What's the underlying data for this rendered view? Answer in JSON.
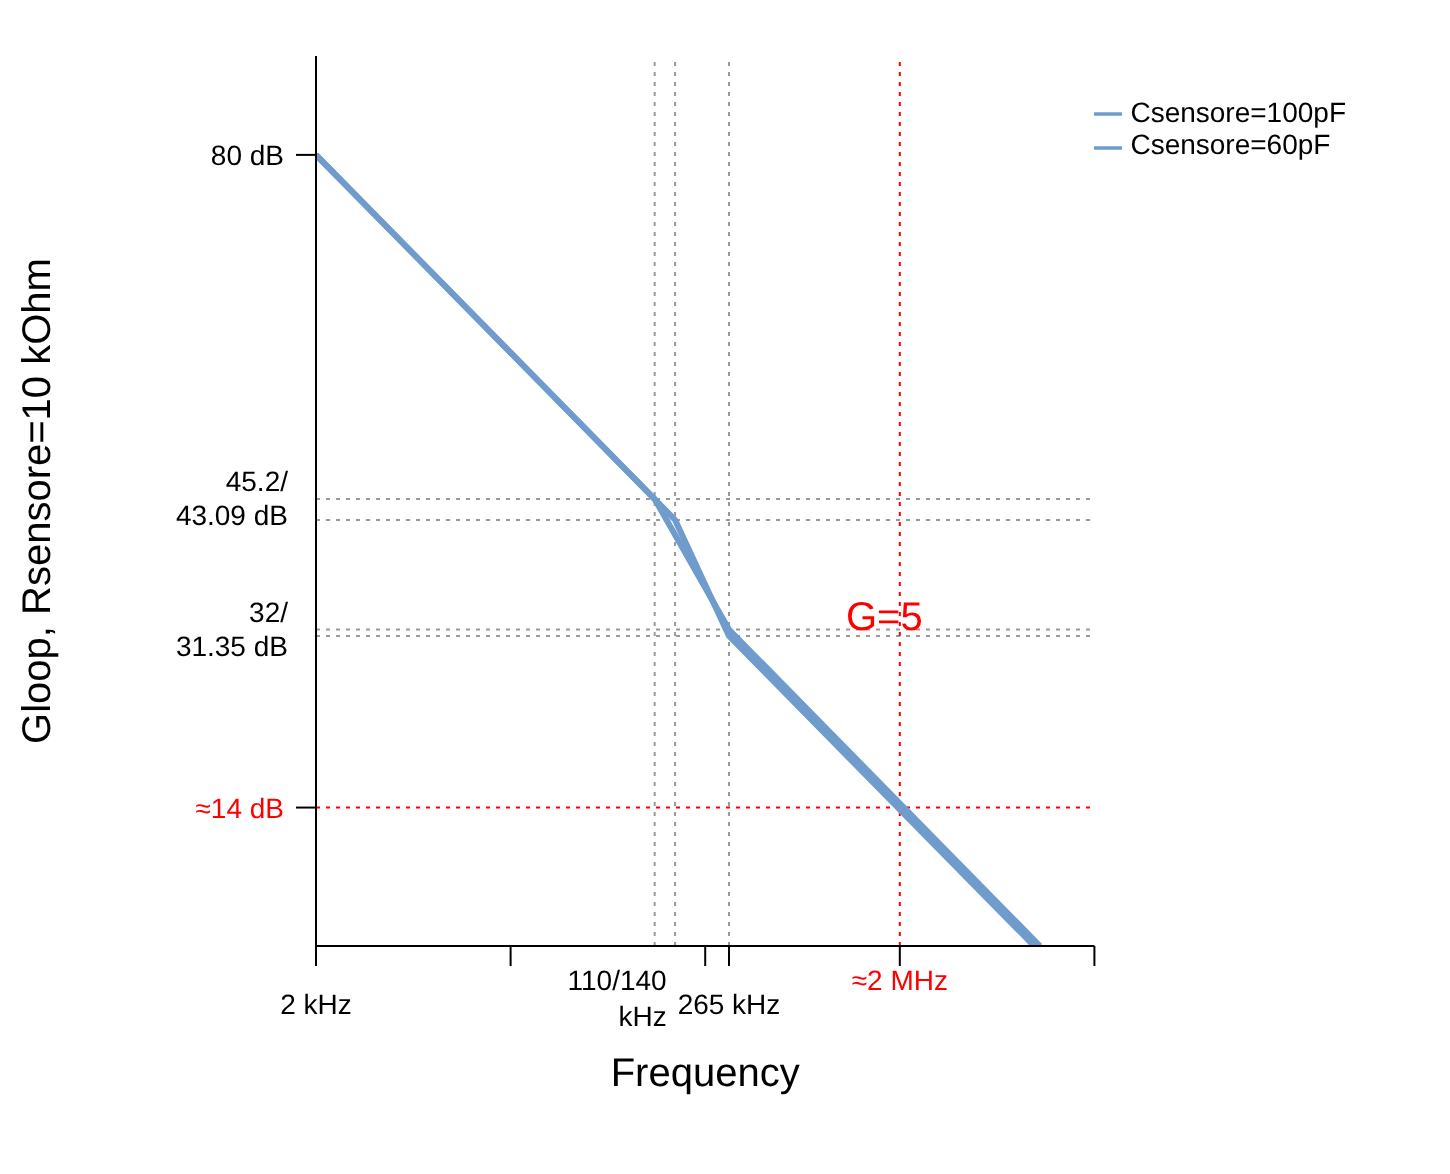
{
  "chart_data": {
    "type": "line",
    "xlabel": "Frequency",
    "ylabel": "Gloop, Rsensore=10 kOhm",
    "log": "x",
    "xlim": [
      2,
      20000
    ],
    "ylim": [
      0,
      90
    ],
    "xticks": [
      {
        "value": 2,
        "label": "2 kHz"
      },
      {
        "value": 20,
        "label": null
      },
      {
        "value": 200,
        "label": null
      },
      {
        "value": 265,
        "label": "265 kHz"
      },
      {
        "value": 2000,
        "label": null
      },
      {
        "value": 20000,
        "label": null
      }
    ],
    "yticks": [
      {
        "value": 14,
        "label": "≈14 dB"
      },
      {
        "value": 80,
        "label": "80 dB"
      }
    ],
    "series": [
      {
        "name": "Csensore=60pF",
        "color": "#6f9ccc",
        "x": [
          2,
          110,
          265,
          10500
        ],
        "values": [
          80,
          45.2,
          32,
          0
        ]
      },
      {
        "name": "Csensore=100pF",
        "color": "#6f9ccc",
        "x": [
          2,
          140,
          265,
          9800
        ],
        "values": [
          80,
          43.09,
          31.35,
          0
        ]
      }
    ],
    "ref_lines": [
      {
        "axis": "y",
        "value": 45.2,
        "label": "45.2/43.09 dB",
        "line_style": "dotted"
      },
      {
        "axis": "y",
        "value": 43.09,
        "label": null,
        "line_style": "dotted"
      },
      {
        "axis": "y",
        "value": 32,
        "label": "32/31.35 dB",
        "line_style": "dotted"
      },
      {
        "axis": "y",
        "value": 31.35,
        "label": null,
        "line_style": "dotted"
      },
      {
        "axis": "y",
        "value": 14,
        "label": null,
        "color": "#ff0000",
        "line_style": "dotted"
      },
      {
        "axis": "x",
        "value": 110,
        "label": "110/140 kHz",
        "line_style": "dotted"
      },
      {
        "axis": "x",
        "value": 140,
        "label": null,
        "line_style": "dotted"
      },
      {
        "axis": "x",
        "value": 265,
        "label": null,
        "line_style": "dotted"
      },
      {
        "axis": "x",
        "value": 2000,
        "label": "≈2 MHz",
        "color": "#ff0000",
        "line_style": "dotted"
      }
    ],
    "annotations": [
      "G=5"
    ],
    "legend": "top right",
    "grid": false,
    "marker": "none",
    "line_style": "solid"
  }
}
